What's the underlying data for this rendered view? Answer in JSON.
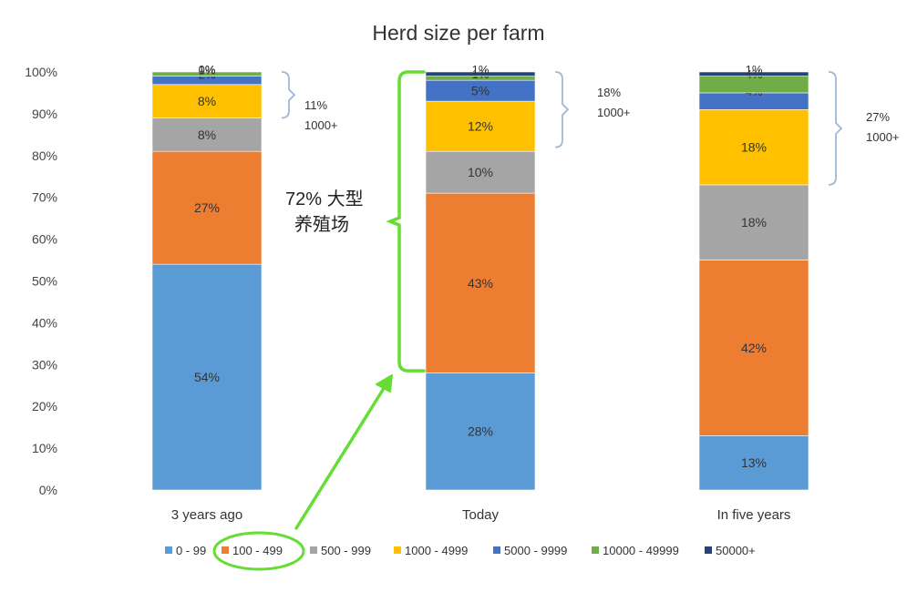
{
  "chart_data": {
    "type": "bar",
    "stacked": true,
    "title": "Herd size per farm",
    "categories": [
      "3 years ago",
      "Today",
      "In five years"
    ],
    "ylim": [
      0,
      100
    ],
    "yticks": [
      "0%",
      "10%",
      "20%",
      "30%",
      "40%",
      "50%",
      "60%",
      "70%",
      "80%",
      "90%",
      "100%"
    ],
    "grid": false,
    "legend_position": "bottom",
    "series": [
      {
        "name": "0 - 99",
        "color": "#5b9bd5",
        "values": [
          54,
          28,
          13
        ],
        "labels": [
          "54%",
          "28%",
          "13%"
        ]
      },
      {
        "name": "100 - 499",
        "color": "#ed7d31",
        "values": [
          27,
          43,
          42
        ],
        "labels": [
          "27%",
          "43%",
          "42%"
        ]
      },
      {
        "name": "500 - 999",
        "color": "#a5a5a5",
        "values": [
          8,
          10,
          18
        ],
        "labels": [
          "8%",
          "10%",
          "18%"
        ]
      },
      {
        "name": "1000 - 4999",
        "color": "#ffc000",
        "values": [
          8,
          12,
          18
        ],
        "labels": [
          "8%",
          "12%",
          "18%"
        ]
      },
      {
        "name": "5000 - 9999",
        "color": "#4472c4",
        "values": [
          2,
          5,
          4
        ],
        "labels": [
          "2%",
          "5%",
          "4%"
        ]
      },
      {
        "name": "10000 - 49999",
        "color": "#70ad47",
        "values": [
          1,
          1,
          4
        ],
        "labels": [
          "1%",
          "1%",
          "4%"
        ]
      },
      {
        "name": "50000+",
        "color": "#264478",
        "values": [
          0,
          1,
          1
        ],
        "labels": [
          "0%",
          "1%",
          "1%"
        ]
      }
    ],
    "annotations": [
      {
        "bar": "3 years ago",
        "pct": "11%",
        "text": "1000+"
      },
      {
        "bar": "Today",
        "pct": "18%",
        "text": "1000+"
      },
      {
        "bar": "In five years",
        "pct": "27%",
        "text": "1000+"
      }
    ],
    "callout": {
      "line1": "72% 大型",
      "line2": "养殖场",
      "color": "#66dd33"
    }
  }
}
